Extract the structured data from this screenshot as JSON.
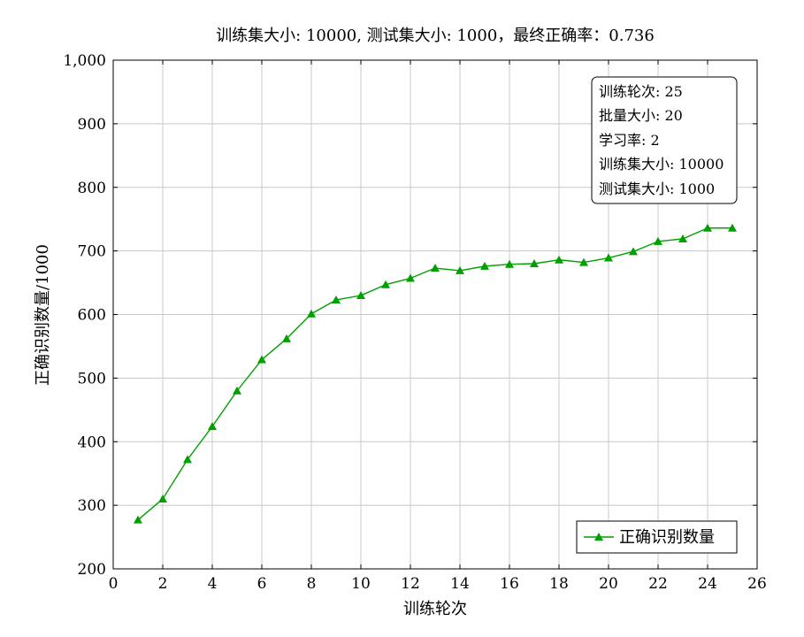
{
  "chart_data": {
    "type": "line",
    "title": "训练集大小: 10000, 测试集大小: 1000，最终正确率：0.736",
    "xlabel": "训练轮次",
    "ylabel": "正确识别数量/1000",
    "xlim": [
      0,
      26
    ],
    "ylim": [
      200,
      1000
    ],
    "x_ticks": [
      0,
      2,
      4,
      6,
      8,
      10,
      12,
      14,
      16,
      18,
      20,
      22,
      24,
      26
    ],
    "y_ticks": [
      200,
      300,
      400,
      500,
      600,
      700,
      800,
      900,
      1000
    ],
    "y_tick_labels": [
      "200",
      "300",
      "400",
      "500",
      "600",
      "700",
      "800",
      "900",
      "1,000"
    ],
    "grid": true,
    "legend_position": "bottom-right",
    "series": [
      {
        "name": "正确识别数量",
        "color": "#00a000",
        "marker": "triangle",
        "x": [
          1,
          2,
          3,
          4,
          5,
          6,
          7,
          8,
          9,
          10,
          11,
          12,
          13,
          14,
          15,
          16,
          17,
          18,
          19,
          20,
          21,
          22,
          23,
          24,
          25
        ],
        "y": [
          277,
          310,
          372,
          424,
          480,
          529,
          562,
          601,
          623,
          630,
          647,
          657,
          673,
          669,
          676,
          679,
          680,
          686,
          682,
          689,
          699,
          715,
          719,
          736,
          736
        ]
      }
    ],
    "info_box": {
      "position": "top-right",
      "lines": [
        "训练轮次: 25",
        "批量大小: 20",
        "学习率: 2",
        "训练集大小: 10000",
        "测试集大小: 1000"
      ]
    }
  }
}
